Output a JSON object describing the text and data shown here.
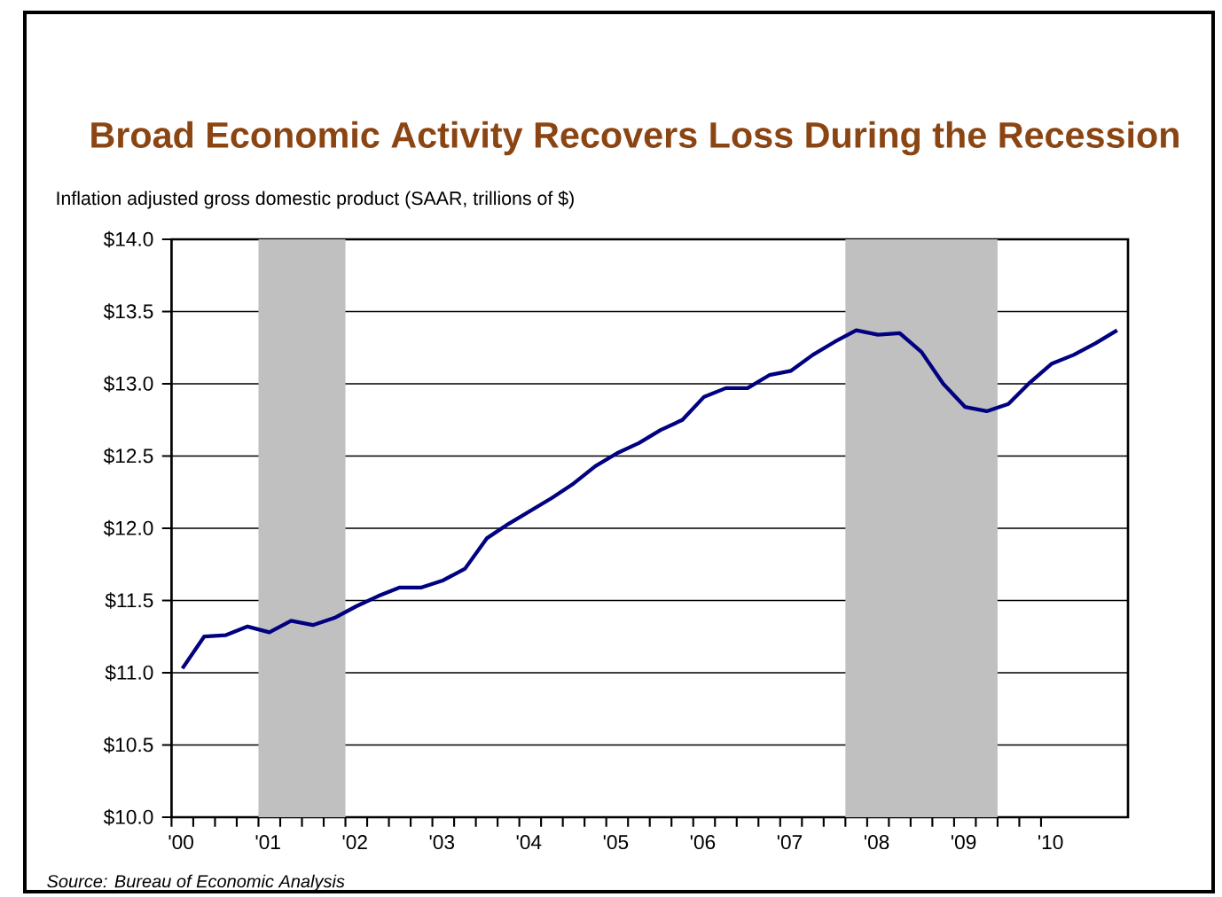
{
  "chart_data": {
    "type": "line",
    "title": "Broad Economic Activity Recovers Loss During the Recession",
    "ylabel": "Inflation adjusted gross domestic product (SAAR, trillions of $)",
    "annotations": [
      "Source: Bureau of Economic Analysis"
    ],
    "x": [
      2000.125,
      2000.375,
      2000.625,
      2000.875,
      2001.125,
      2001.375,
      2001.625,
      2001.875,
      2002.125,
      2002.375,
      2002.625,
      2002.875,
      2003.125,
      2003.375,
      2003.625,
      2003.875,
      2004.125,
      2004.375,
      2004.625,
      2004.875,
      2005.125,
      2005.375,
      2005.625,
      2005.875,
      2006.125,
      2006.375,
      2006.625,
      2006.875,
      2007.125,
      2007.375,
      2007.625,
      2007.875,
      2008.125,
      2008.375,
      2008.625,
      2008.875,
      2009.125,
      2009.375,
      2009.625,
      2009.875,
      2010.125,
      2010.375,
      2010.625,
      2010.875
    ],
    "series": [
      {
        "color": "#000080",
        "values": [
          11.03,
          11.25,
          11.26,
          11.32,
          11.28,
          11.36,
          11.33,
          11.38,
          11.46,
          11.53,
          11.59,
          11.59,
          11.64,
          11.72,
          11.93,
          12.03,
          12.12,
          12.21,
          12.31,
          12.43,
          12.52,
          12.59,
          12.68,
          12.75,
          12.91,
          12.97,
          12.97,
          13.06,
          13.09,
          13.2,
          13.29,
          13.37,
          13.34,
          13.35,
          13.22,
          13.0,
          12.84,
          12.81,
          12.86,
          13.01,
          13.14,
          13.2,
          13.28,
          13.37
        ]
      }
    ],
    "xlim": [
      2000,
      2011
    ],
    "xticks": [
      {
        "value": 2000,
        "label": "'00"
      },
      {
        "value": 2001,
        "label": "'01"
      },
      {
        "value": 2002,
        "label": "'02"
      },
      {
        "value": 2003,
        "label": "'03"
      },
      {
        "value": 2004,
        "label": "'04"
      },
      {
        "value": 2005,
        "label": "'05"
      },
      {
        "value": 2006,
        "label": "'06"
      },
      {
        "value": 2007,
        "label": "'07"
      },
      {
        "value": 2008,
        "label": "'08"
      },
      {
        "value": 2009,
        "label": "'09"
      },
      {
        "value": 2010,
        "label": "'10"
      }
    ],
    "ylim": [
      10,
      14
    ],
    "yticks": [
      {
        "value": 10,
        "label": "$10.0"
      },
      {
        "value": 10.5,
        "label": "$10.5"
      },
      {
        "value": 11,
        "label": "$11.0"
      },
      {
        "value": 11.5,
        "label": "$11.5"
      },
      {
        "value": 12,
        "label": "$12.0"
      },
      {
        "value": 12.5,
        "label": "$12.5"
      },
      {
        "value": 13,
        "label": "$13.0"
      },
      {
        "value": 13.5,
        "label": "$13.5"
      },
      {
        "value": 14,
        "label": "$14.0"
      }
    ],
    "grid": "y",
    "bands": [
      {
        "axis": "x",
        "from": 2001,
        "to": 2002,
        "color": "#c0c0c0"
      },
      {
        "axis": "x",
        "from": 2007.75,
        "to": 2009.5,
        "color": "#c0c0c0"
      }
    ]
  }
}
